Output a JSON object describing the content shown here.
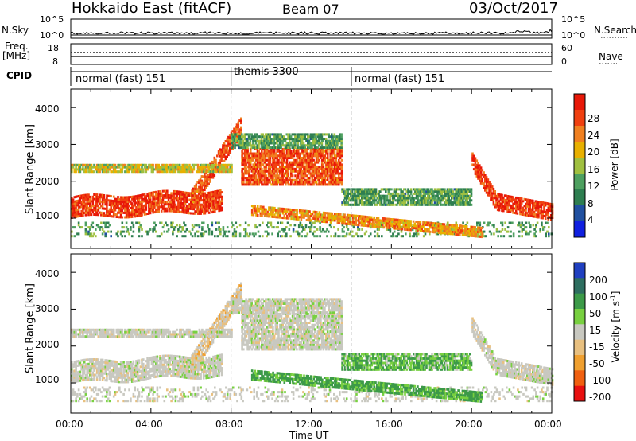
{
  "header": {
    "station": "Hokkaido East (fitACF)",
    "beam": "Beam 07",
    "date": "03/Oct/2017"
  },
  "strip": {
    "nsky_label": "N.Sky",
    "nsearch_label": "N.Search",
    "noise_ticks_left": [
      "10^5",
      "10^0"
    ],
    "noise_ticks_right": [
      "10^5",
      "10^0"
    ],
    "freq_label_line1": "Freq.",
    "freq_label_line2": "[MHz]",
    "freq_ticks": [
      "18",
      "8"
    ],
    "nave_label": "Nave",
    "nave_ticks": [
      "60",
      "0"
    ],
    "cpid_label": "CPID",
    "modes": [
      {
        "name": "normal (fast) 151",
        "start": 0,
        "end": 8
      },
      {
        "name": "themis 3300",
        "start": 8,
        "end": 14
      },
      {
        "name": "normal (fast) 151",
        "start": 14,
        "end": 24
      }
    ]
  },
  "power_panel": {
    "ylabel": "Slant Range [km]",
    "yticks": [
      "1000",
      "2000",
      "3000",
      "4000"
    ],
    "colorbar_label": "Power [dB]",
    "colorbar_ticks": [
      "4",
      "8",
      "12",
      "16",
      "20",
      "24",
      "28"
    ],
    "colors": [
      "#1020e0",
      "#2050a0",
      "#2e7e50",
      "#4ea060",
      "#a0c040",
      "#e8b000",
      "#f08020",
      "#f04010",
      "#e81808"
    ]
  },
  "velocity_panel": {
    "ylabel": "Slant Range [km]",
    "yticks": [
      "1000",
      "2000",
      "3000",
      "4000"
    ],
    "colorbar_label": "Velocity [m s",
    "colorbar_label_sup": "-1",
    "colorbar_label_end": "]",
    "colorbar_ticks": [
      "200",
      "100",
      "50",
      "15",
      "-15",
      "-50",
      "-100",
      "-200"
    ],
    "colors": [
      "#2040c0",
      "#2e6e60",
      "#3c9a48",
      "#78d040",
      "#c8c8c0",
      "#e8c080",
      "#f0a030",
      "#f06010",
      "#e81010"
    ]
  },
  "xaxis": {
    "label": "Time UT",
    "ticks": [
      "00:00",
      "04:00",
      "08:00",
      "12:00",
      "16:00",
      "20:00",
      "00:00"
    ]
  },
  "chart_data": {
    "type": "heatmap",
    "title": "Hokkaido East (fitACF)",
    "x_range_hours": [
      0,
      24
    ],
    "y_range_km": [
      180,
      4500
    ],
    "power_range_db": [
      0,
      32
    ],
    "velocity_range": [
      -250,
      250
    ],
    "scatter_regions": [
      {
        "name": "near range band",
        "t": [
          0,
          24
        ],
        "r": [
          500,
          900
        ],
        "power": 12,
        "velocity": 0
      },
      {
        "name": "main morning band",
        "t": [
          0,
          7.5
        ],
        "r": [
          1000,
          1550
        ],
        "power": 28,
        "velocity": 0
      },
      {
        "name": "rising arc",
        "t": [
          6,
          8.5
        ],
        "r": [
          1500,
          3500
        ],
        "power": 26,
        "velocity": -20
      },
      {
        "name": "upper band",
        "t": [
          0,
          8
        ],
        "r": [
          2250,
          2450
        ],
        "power": 18,
        "velocity": 0
      },
      {
        "name": "post-midnight patch",
        "t": [
          8.5,
          13.5
        ],
        "r": [
          1900,
          2900
        ],
        "power": 26,
        "velocity": 0
      },
      {
        "name": "high range patch",
        "t": [
          8,
          13.5
        ],
        "r": [
          2900,
          3300
        ],
        "power": 12,
        "velocity": 0
      },
      {
        "name": "descending band",
        "t": [
          9,
          20.5
        ],
        "r": [
          600,
          1200
        ],
        "power": 22,
        "velocity": 40
      },
      {
        "name": "afternoon band",
        "t": [
          13.5,
          20
        ],
        "r": [
          1350,
          1800
        ],
        "power": 12,
        "velocity": 30
      },
      {
        "name": "evening arc",
        "t": [
          20,
          24
        ],
        "r": [
          1100,
          2600
        ],
        "power": 28,
        "velocity": 0
      }
    ]
  }
}
